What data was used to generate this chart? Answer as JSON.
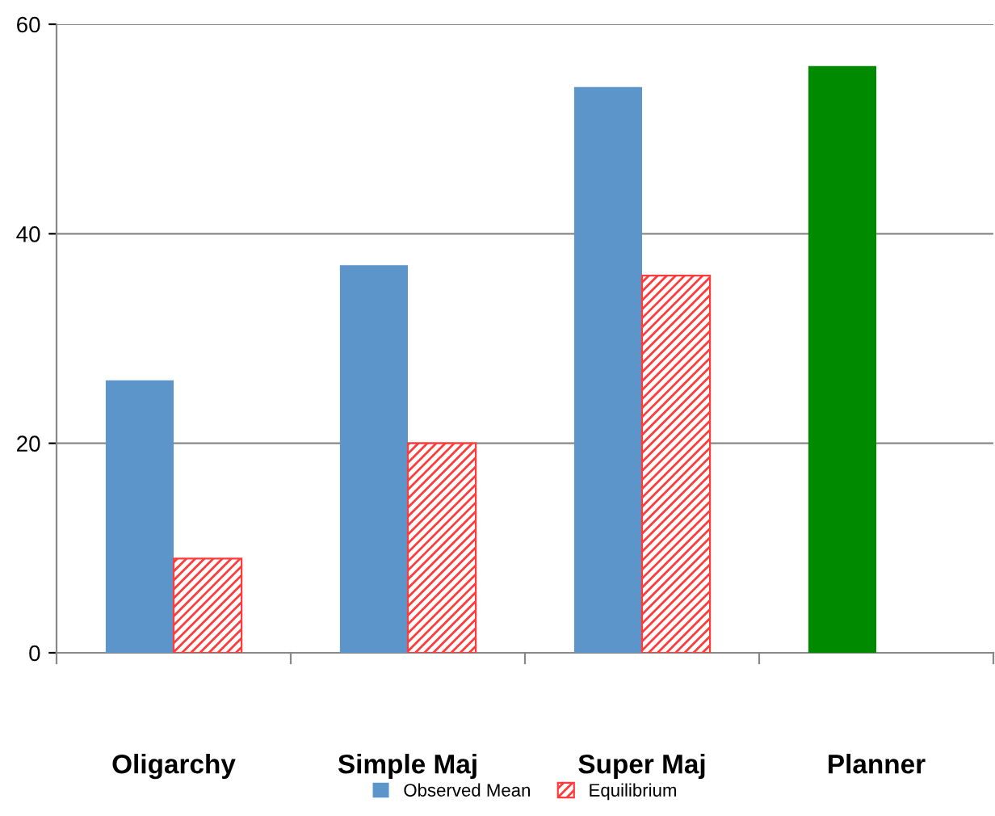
{
  "chart_data": {
    "type": "bar",
    "categories": [
      "Oligarchy",
      "Simple Maj",
      "Super Maj",
      "Planner"
    ],
    "series": [
      {
        "name": "Observed Mean",
        "color": "#5b95c9",
        "colors": [
          "#5b95c9",
          "#5b95c9",
          "#5b95c9",
          "#008a00"
        ],
        "values": [
          26,
          37,
          54,
          56
        ]
      },
      {
        "name": "Equilibrium",
        "color": "#ff3b3b",
        "values": [
          9,
          20,
          36,
          null
        ]
      }
    ],
    "ylim": [
      0,
      60
    ],
    "yticks": [
      0,
      20,
      40,
      60
    ],
    "grid": "y",
    "legend": "bottom"
  }
}
